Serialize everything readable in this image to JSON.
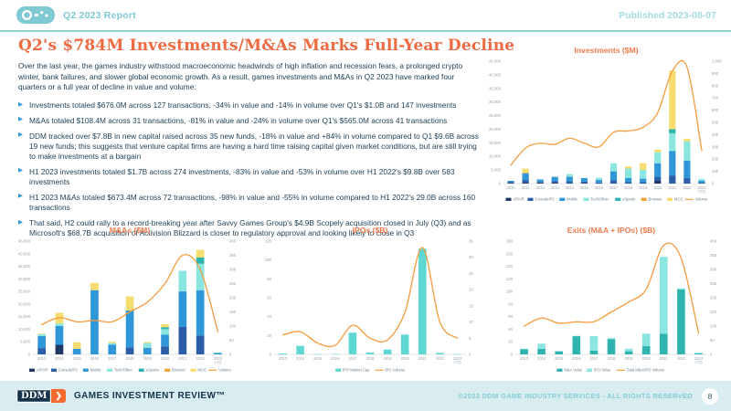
{
  "header": {
    "report_label": "Q2 2023 Report",
    "published": "Published 2023-08-07"
  },
  "title": "Q2's $784M Investments/M&As Marks Full-Year Decline",
  "intro": "Over the last year, the games industry withstood macroeconomic headwinds of high inflation and recession fears, a prolonged crypto winter, bank failures, and slower global economic growth. As a result, games investments and M&As in Q2 2023 have marked four quarters or a full year of decline in value and volume:",
  "bullets": [
    "Investments totaled $676.0M across 127 transactions, -34% in value and -14% in volume over Q1's $1.0B and 147 investments",
    "M&As totaled $108.4M across 31 transactions, -81% in value and -24% in volume over Q1's $565.0M across 41 transactions",
    "DDM tracked over $7.8B in new capital raised across 35 new funds, -18% in value and +84% in volume compared to Q1 $9.6B across 19 new funds; this suggests that venture capital firms are having a hard time raising capital given market conditions, but are still trying to make investments at a bargain",
    "H1 2023 investments totaled $1.7B across 274 investments, -83% in value and -53% in volume over H1 2022's $9.8B over 583 investments",
    "H1 2023 M&As totaled $673.4M across 72 transactions, -98% in value and -55% in volume compared to H1 2022's 29.0B across 160 transactions",
    "That said, H2 could rally to a record-breaking year after Savvy Games Group's $4.9B Scopely acquisition closed in July (Q3) and as Microsoft's $68.7B acquisition of Activision Blizzard is closer to regulatory approval and looking likely to close in Q3"
  ],
  "chart_data": [
    {
      "type": "stacked-bar+line",
      "title": "Investments ($M)",
      "categories": [
        "2010",
        "2011",
        "2012",
        "2013",
        "2014",
        "2015",
        "2016",
        "2017",
        "2018",
        "2019",
        "2020",
        "2021",
        "2022",
        "2023 YTD"
      ],
      "left_axis": {
        "min": 0,
        "max": 45000,
        "step": 5000
      },
      "right_axis": {
        "min": 0,
        "max": 1000,
        "step": 100
      },
      "legend_position": "bottom",
      "series": [
        {
          "name": "AR/VR",
          "color": "#1f3864",
          "values": [
            200,
            300,
            300,
            300,
            0,
            200,
            0,
            0,
            0,
            0,
            1000,
            0,
            0,
            0
          ]
        },
        {
          "name": "Console/PC",
          "color": "#2b5da8",
          "values": [
            300,
            1000,
            300,
            600,
            800,
            500,
            400,
            1200,
            500,
            500,
            1500,
            3000,
            2000,
            300
          ]
        },
        {
          "name": "Mobile",
          "color": "#2f97d8",
          "values": [
            500,
            2500,
            900,
            1600,
            1700,
            1300,
            900,
            3300,
            1500,
            1300,
            5000,
            9000,
            6500,
            700
          ]
        },
        {
          "name": "Tech/Other",
          "color": "#8ce6e0",
          "values": [
            0,
            0,
            0,
            0,
            1000,
            0,
            800,
            3000,
            3500,
            3200,
            4000,
            6500,
            7000,
            700
          ]
        },
        {
          "name": "eSports",
          "color": "#2fb3ae",
          "values": [
            0,
            0,
            0,
            0,
            0,
            0,
            0,
            0,
            0,
            0,
            0,
            1500,
            0,
            0
          ]
        },
        {
          "name": "Browser",
          "color": "#f0a43c",
          "values": [
            0,
            200,
            0,
            0,
            0,
            0,
            0,
            0,
            0,
            0,
            0,
            0,
            0,
            0
          ]
        },
        {
          "name": "MCG",
          "color": "#f7dd70",
          "values": [
            0,
            1500,
            0,
            0,
            0,
            0,
            0,
            0,
            800,
            2500,
            1000,
            21500,
            1000,
            0
          ]
        }
      ],
      "line": {
        "name": "Volume",
        "color": "#f59b3d",
        "values": [
          150,
          290,
          330,
          320,
          370,
          330,
          300,
          420,
          430,
          460,
          580,
          920,
          950,
          270
        ]
      }
    },
    {
      "type": "stacked-bar+line",
      "title": "M&As ($M)",
      "categories": [
        "2013",
        "2014",
        "2015",
        "2016",
        "2017",
        "2018",
        "2019",
        "2020",
        "2021",
        "2022",
        "2023 YTD"
      ],
      "left_axis": {
        "min": 0,
        "max": 45000,
        "step": 5000
      },
      "right_axis": {
        "min": 0,
        "max": 400,
        "step": 50
      },
      "legend_position": "bottom",
      "series": [
        {
          "name": "AR/VR",
          "color": "#1f3864",
          "values": [
            0,
            3800,
            0,
            0,
            0,
            0,
            0,
            0,
            0,
            0,
            0
          ]
        },
        {
          "name": "Console/PC",
          "color": "#2b5da8",
          "values": [
            2500,
            0,
            0,
            0,
            0,
            2800,
            0,
            3200,
            11000,
            7500,
            0
          ]
        },
        {
          "name": "Mobile",
          "color": "#2f97d8",
          "values": [
            4800,
            7500,
            2200,
            25500,
            3900,
            14700,
            2600,
            4600,
            14000,
            18000,
            600
          ]
        },
        {
          "name": "Tech/Other",
          "color": "#8ce6e0",
          "values": [
            700,
            1000,
            0,
            0,
            600,
            0,
            1900,
            2200,
            8200,
            10500,
            100
          ]
        },
        {
          "name": "eSports",
          "color": "#2fb3ae",
          "values": [
            0,
            0,
            0,
            0,
            0,
            0,
            0,
            800,
            0,
            2500,
            0
          ]
        },
        {
          "name": "Browser",
          "color": "#f0a43c",
          "values": [
            0,
            0,
            0,
            0,
            0,
            0,
            0,
            0,
            0,
            0,
            0
          ]
        },
        {
          "name": "MCG",
          "color": "#f7dd70",
          "values": [
            300,
            4200,
            2600,
            2900,
            500,
            5500,
            400,
            1200,
            0,
            3000,
            0
          ]
        }
      ],
      "line": {
        "name": "Volume",
        "color": "#f59b3d",
        "values": [
          105,
          130,
          115,
          120,
          115,
          150,
          185,
          250,
          350,
          300,
          80
        ]
      }
    },
    {
      "type": "bar+line",
      "title": "IPOs ($B)",
      "categories": [
        "2013",
        "2014",
        "2015",
        "2016",
        "2017",
        "2018",
        "2019",
        "2020",
        "2021",
        "2022",
        "2023 YTD"
      ],
      "left_axis": {
        "min": 0,
        "max": 120,
        "step": 20
      },
      "right_axis": {
        "min": 0,
        "max": 35,
        "step": 5
      },
      "legend_position": "bottom",
      "series": [
        {
          "name": "IPO Market Cap",
          "color": "#5fd8d4",
          "values": [
            1,
            9,
            0.3,
            0.5,
            23,
            2,
            5,
            21,
            112,
            1.5,
            0.3
          ]
        }
      ],
      "line": {
        "name": "IPO Volume",
        "color": "#f59b3d",
        "values": [
          6,
          7,
          3.5,
          2.8,
          9,
          5,
          4.5,
          13,
          33,
          10,
          5
        ]
      }
    },
    {
      "type": "stacked-bar+line",
      "title": "Exits (M&A + IPOs) ($B)",
      "categories": [
        "2013",
        "2014",
        "2015",
        "2016",
        "2017",
        "2018",
        "2019",
        "2020",
        "2021",
        "2022",
        "2023 YTD"
      ],
      "left_axis": {
        "min": 0,
        "max": 180,
        "step": 20
      },
      "right_axis": {
        "min": 0,
        "max": 400,
        "step": 50
      },
      "legend_position": "bottom",
      "series": [
        {
          "name": "M&A Value",
          "color": "#2fb3ae",
          "values": [
            8,
            9,
            5,
            29,
            6,
            24,
            5,
            13,
            33,
            103,
            2
          ]
        },
        {
          "name": "IPO Value",
          "color": "#8ce6e0",
          "values": [
            1,
            8,
            0,
            0.5,
            23,
            2,
            4,
            20,
            122,
            2,
            0.3
          ]
        }
      ],
      "line": {
        "name": "Total M&A/IPO Volume",
        "color": "#f59b3d",
        "values": [
          100,
          128,
          110,
          115,
          115,
          150,
          185,
          230,
          385,
          340,
          75
        ]
      }
    }
  ],
  "footer": {
    "logo_text": "DDM",
    "brand": "GAMES INVESTMENT REVIEW™",
    "copyright": "©2023 DDM GAME INDUSTRY SERVICES - ALL RIGHTS RESERVED",
    "page_number": "8"
  }
}
